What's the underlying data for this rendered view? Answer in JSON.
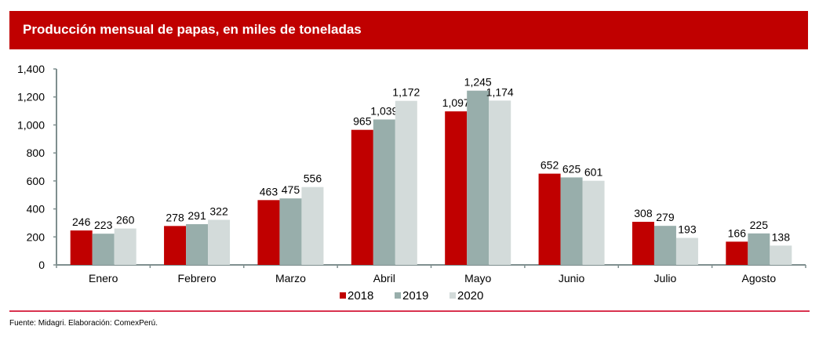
{
  "header": {
    "title": "Producción mensual de papas, en miles de toneladas"
  },
  "footer": {
    "source": "Fuente: Midagri. Elaboración: ComexPerú."
  },
  "colors": {
    "header_bg": "#c00000",
    "axis": "#7f8f8f",
    "divider": "#d9334f"
  },
  "chart_data": {
    "type": "bar",
    "title": "Producción mensual de papas, en miles de toneladas",
    "xlabel": "",
    "ylabel": "",
    "ylim": [
      0,
      1400
    ],
    "yticks": [
      0,
      200,
      400,
      600,
      800,
      1000,
      1200,
      1400
    ],
    "ytick_labels": [
      "0",
      "200",
      "400",
      "600",
      "800",
      "1,000",
      "1,200",
      "1,400"
    ],
    "grid": false,
    "legend_position": "bottom-center",
    "categories": [
      "Enero",
      "Febrero",
      "Marzo",
      "Abril",
      "Mayo",
      "Junio",
      "Julio",
      "Agosto"
    ],
    "series": [
      {
        "name": "2018",
        "color": "#c00000",
        "values": [
          246,
          278,
          463,
          965,
          1097,
          652,
          308,
          166
        ],
        "labels": [
          "246",
          "278",
          "463",
          "965",
          "1,097",
          "652",
          "308",
          "166"
        ]
      },
      {
        "name": "2019",
        "color": "#98aeab",
        "values": [
          223,
          291,
          475,
          1039,
          1245,
          625,
          279,
          225
        ],
        "labels": [
          "223",
          "291",
          "475",
          "1,039",
          "1,245",
          "625",
          "279",
          "225"
        ]
      },
      {
        "name": "2020",
        "color": "#d3dbda",
        "values": [
          260,
          322,
          556,
          1172,
          1174,
          601,
          193,
          138
        ],
        "labels": [
          "260",
          "322",
          "556",
          "1,172",
          "1,174",
          "601",
          "193",
          "138"
        ]
      }
    ]
  }
}
